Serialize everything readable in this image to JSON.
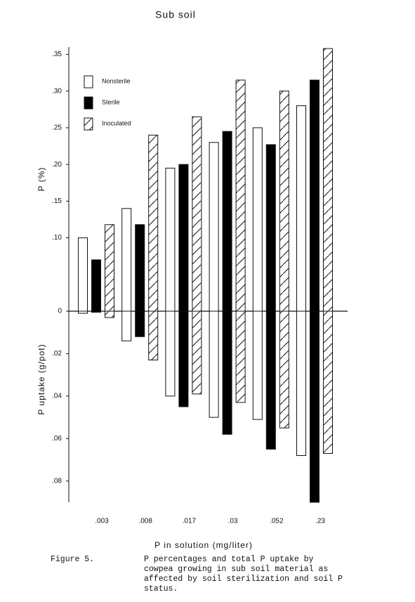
{
  "chart_data": [
    {
      "type": "bar",
      "title": "Sub soil",
      "y_label": "P (%)",
      "legend": "upper-left",
      "ylim": [
        0,
        0.36
      ],
      "yticks": [
        0,
        {
          "value": 0.1,
          "label": ".10"
        },
        {
          "value": 0.15,
          "label": ".15"
        },
        {
          "value": 0.2,
          "label": ".20"
        },
        {
          "value": 0.25,
          "label": ".25"
        },
        {
          "value": 0.3,
          "label": ".30"
        },
        {
          "value": 0.35,
          "label": ".35"
        }
      ],
      "series": [
        {
          "name": "Nonsterile",
          "color": "#ffffff",
          "fill": "solid",
          "values": [
            0.1,
            0.14,
            0.195,
            0.23,
            0.25,
            0.28
          ]
        },
        {
          "name": "Sterile",
          "color": "#000000",
          "fill": "solid",
          "values": [
            0.07,
            0.118,
            0.2,
            0.245,
            0.227,
            0.315
          ]
        },
        {
          "name": "Inoculated",
          "color": "#ffffff",
          "fill": "hatch",
          "values": [
            0.118,
            0.24,
            0.265,
            0.315,
            0.3,
            0.358
          ]
        }
      ]
    },
    {
      "type": "bar",
      "direction": "down",
      "y_label": "P uptake (g/pot)",
      "x_label": "P in solution (mg/liter)",
      "categories": [
        ".003",
        ".008",
        ".017",
        ".03",
        ".052",
        ".23"
      ],
      "ylim": [
        0,
        0.09
      ],
      "yticks": [
        {
          "value": 0.02,
          "label": ".02"
        },
        {
          "value": 0.04,
          "label": ".04"
        },
        {
          "value": 0.06,
          "label": ".06"
        },
        {
          "value": 0.08,
          "label": ".08"
        }
      ],
      "series": [
        {
          "color": "#ffffff",
          "fill": "solid",
          "values": [
            0.001,
            0.014,
            0.04,
            0.05,
            0.051,
            0.068
          ]
        },
        {
          "color": "#000000",
          "fill": "solid",
          "values": [
            0.0005,
            0.012,
            0.045,
            0.058,
            0.065,
            0.09
          ]
        },
        {
          "color": "#ffffff",
          "fill": "hatch",
          "values": [
            0.003,
            0.023,
            0.039,
            0.043,
            0.055,
            0.067
          ]
        }
      ]
    }
  ],
  "caption": {
    "label": "Figure 5.",
    "lines": [
      "P percentages and total P uptake by",
      "cowpea growing in sub soil material as",
      "affected by soil sterilization and soil P",
      "status."
    ]
  }
}
